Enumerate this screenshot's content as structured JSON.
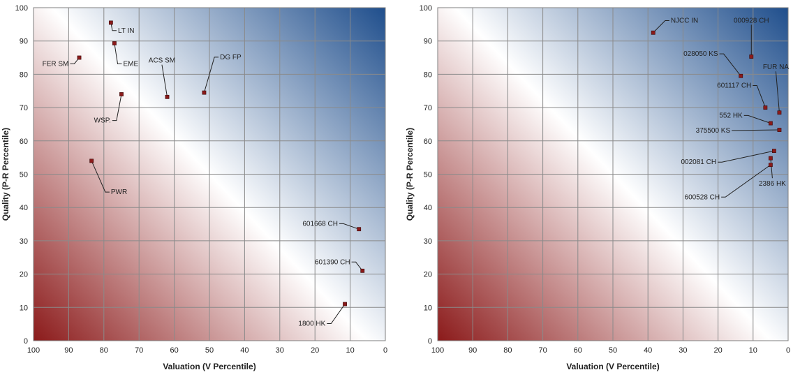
{
  "chart_data": [
    {
      "type": "scatter",
      "xlabel": "Valuation (V Percentile)",
      "ylabel": "Quality (P-R Percentile)",
      "xlim": [
        100,
        0
      ],
      "ylim": [
        0,
        100
      ],
      "x_ticks": [
        "100",
        "90",
        "80",
        "70",
        "60",
        "50",
        "40",
        "30",
        "20",
        "10",
        "0"
      ],
      "y_ticks": [
        "0",
        "10",
        "20",
        "30",
        "40",
        "50",
        "60",
        "70",
        "80",
        "90",
        "100"
      ],
      "grid": true,
      "background": "diagonal gradient: dark red (low valuation/quality) to white to dark blue (high)",
      "colors": {
        "low": "#8b1a1a",
        "mid": "#ffffff",
        "high": "#1f4e8c",
        "marker": "#8b1a1a"
      },
      "points": [
        {
          "label": "LT IN",
          "x": 78,
          "y": 95.5,
          "lx": 76,
          "ly": 92.5
        },
        {
          "label": "FER SM",
          "x": 87,
          "y": 85,
          "lx": 90,
          "ly": 82.5
        },
        {
          "label": "EME",
          "x": 77,
          "y": 89.3,
          "lx": 74.5,
          "ly": 82.5
        },
        {
          "label": "ACS SM",
          "x": 62,
          "y": 73.2,
          "lx": 63.5,
          "ly": 83.5
        },
        {
          "label": "DG FP",
          "x": 51.5,
          "y": 74.5,
          "lx": 47,
          "ly": 84.5
        },
        {
          "label": "WSP.",
          "x": 75,
          "y": 74,
          "lx": 78,
          "ly": 65.5
        },
        {
          "label": "PWR",
          "x": 83.5,
          "y": 54,
          "lx": 78,
          "ly": 44
        },
        {
          "label": "601668 CH",
          "x": 7.5,
          "y": 33.5,
          "lx": 13.5,
          "ly": 34.5
        },
        {
          "label": "601390 CH",
          "x": 6.5,
          "y": 21,
          "lx": 10,
          "ly": 23
        },
        {
          "label": "1800 HK",
          "x": 11.5,
          "y": 11,
          "lx": 17,
          "ly": 4.5
        }
      ]
    },
    {
      "type": "scatter",
      "xlabel": "Valuation (V Percentile)",
      "ylabel": "Quality (P-R Percentile)",
      "xlim": [
        100,
        0
      ],
      "ylim": [
        0,
        100
      ],
      "x_ticks": [
        "100",
        "90",
        "80",
        "70",
        "60",
        "50",
        "40",
        "30",
        "20",
        "10",
        "0"
      ],
      "y_ticks": [
        "0",
        "10",
        "20",
        "30",
        "40",
        "50",
        "60",
        "70",
        "80",
        "90",
        "100"
      ],
      "grid": true,
      "background": "diagonal gradient: dark red (low valuation/quality) to white to dark blue (high)",
      "colors": {
        "low": "#8b1a1a",
        "mid": "#ffffff",
        "high": "#1f4e8c",
        "marker": "#8b1a1a"
      },
      "points": [
        {
          "label": "NJCC IN",
          "x": 38.5,
          "y": 92.5,
          "lx": 33.5,
          "ly": 95.5
        },
        {
          "label": "000928 CH",
          "x": 10.5,
          "y": 85.3,
          "lx": 10.5,
          "ly": 95.5
        },
        {
          "label": "028050 KS",
          "x": 13.5,
          "y": 79.5,
          "lx": 20,
          "ly": 85.5
        },
        {
          "label": "FUR NA",
          "x": 2.5,
          "y": 68.5,
          "lx": 3.5,
          "ly": 81.5
        },
        {
          "label": "601117 CH",
          "x": 6.5,
          "y": 70,
          "lx": 10.5,
          "ly": 76
        },
        {
          "label": "552 HK",
          "x": 5,
          "y": 65.3,
          "lx": 13,
          "ly": 67
        },
        {
          "label": "375500 KS",
          "x": 2.5,
          "y": 63.3,
          "lx": 16.5,
          "ly": 62.5
        },
        {
          "label": "002081 CH",
          "x": 4,
          "y": 57,
          "lx": 20.5,
          "ly": 53
        },
        {
          "label": "2386 HK",
          "x": 5,
          "y": 54.8,
          "lx": 4.5,
          "ly": 46.5
        },
        {
          "label": "600528 CH",
          "x": 5,
          "y": 52.8,
          "lx": 19.5,
          "ly": 42.5
        }
      ]
    }
  ]
}
